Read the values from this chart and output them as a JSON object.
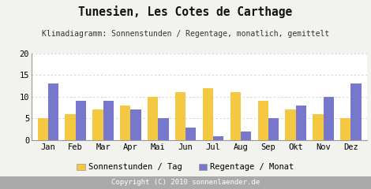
{
  "title": "Tunesien, Les Cotes de Carthage",
  "subtitle": "Klimadiagramm: Sonnenstunden / Regentage, monatlich, gemittelt",
  "months": [
    "Jan",
    "Feb",
    "Mar",
    "Apr",
    "Mai",
    "Jun",
    "Jul",
    "Aug",
    "Sep",
    "Okt",
    "Nov",
    "Dez"
  ],
  "sonnenstunden": [
    5,
    6,
    7,
    8,
    10,
    11,
    12,
    11,
    9,
    7,
    6,
    5
  ],
  "regentage": [
    13,
    9,
    9,
    7,
    5,
    3,
    1,
    2,
    5,
    8,
    10,
    13
  ],
  "color_sonne": "#F5C842",
  "color_regen": "#7777CC",
  "ylim": [
    0,
    20
  ],
  "yticks": [
    0,
    5,
    10,
    15,
    20
  ],
  "legend_sonne": "Sonnenstunden / Tag",
  "legend_regen": "Regentage / Monat",
  "copyright": "Copyright (C) 2010 sonnenlaender.de",
  "bg_color": "#F2F2EE",
  "plot_bg": "#FFFFFF",
  "footer_bg": "#AAAAAA",
  "footer_text_color": "#FFFFFF",
  "grid_color": "#CCCCCC",
  "title_fontsize": 10.5,
  "subtitle_fontsize": 7.0,
  "tick_fontsize": 7.5,
  "legend_fontsize": 7.5,
  "copyright_fontsize": 6.5,
  "bar_width": 0.38
}
